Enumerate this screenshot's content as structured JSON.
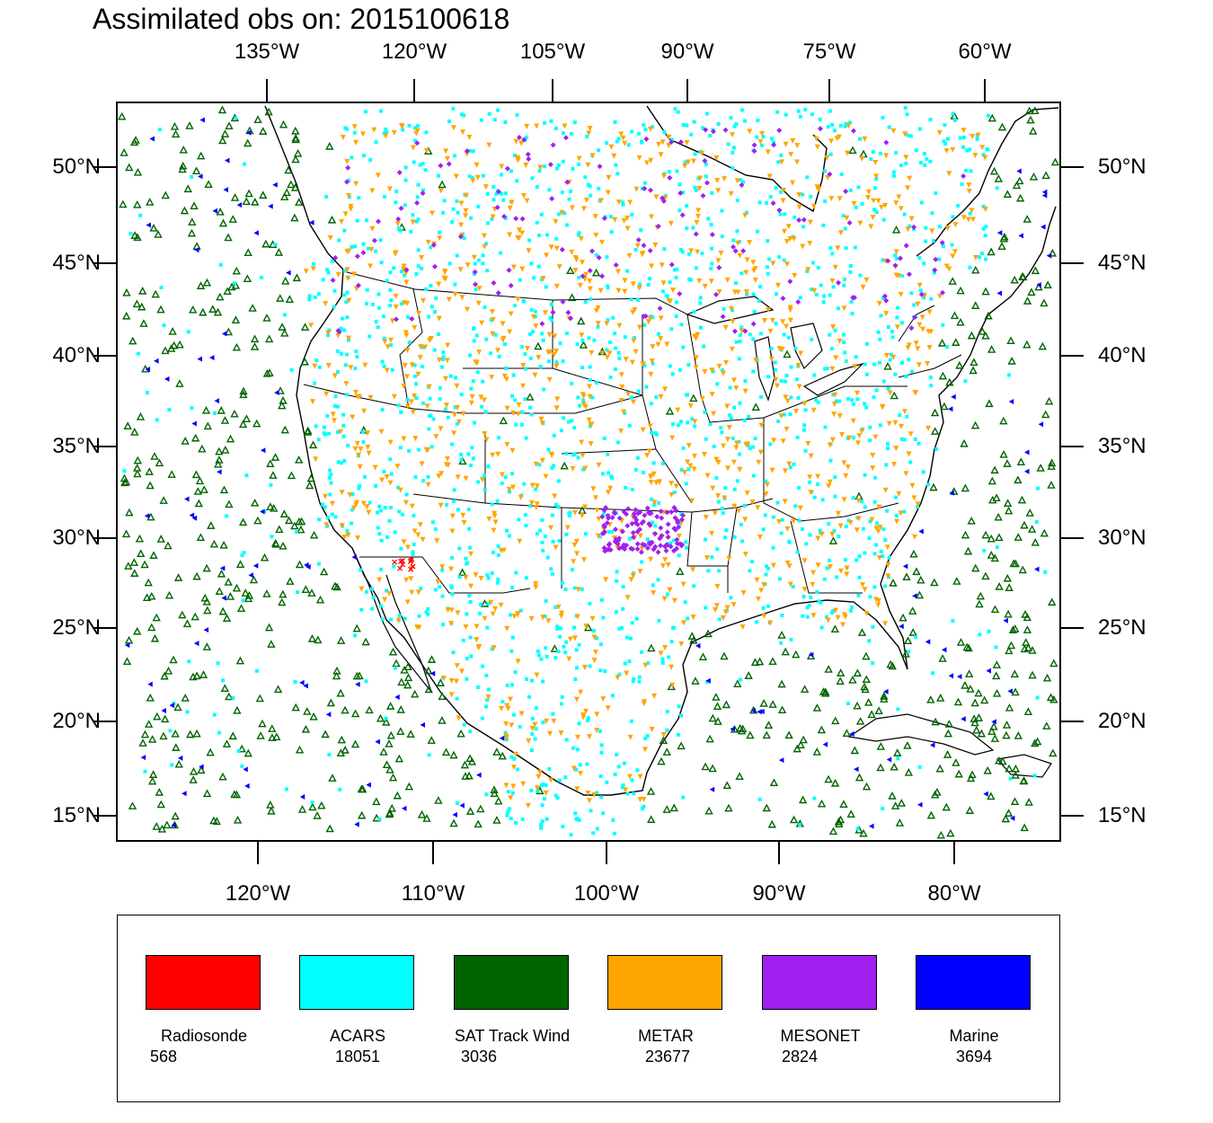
{
  "title": "Assimilated obs on: 2015100618",
  "top_lon_labels": [
    "135°W",
    "120°W",
    "105°W",
    "90°W",
    "75°W",
    "60°W"
  ],
  "bottom_lon_labels": [
    "120°W",
    "110°W",
    "100°W",
    "90°W",
    "80°W"
  ],
  "lat_labels": [
    "50°N",
    "45°N",
    "40°N",
    "35°N",
    "30°N",
    "25°N",
    "20°N",
    "15°N"
  ],
  "colors": {
    "radiosonde": "#ff0000",
    "acars": "#00ffff",
    "sat_track_wind": "#006400",
    "metar": "#ffa500",
    "mesonet": "#a020f0",
    "marine": "#0000ff"
  },
  "legend": [
    {
      "name": "Radiosonde",
      "count": "568",
      "color": "#ff0000"
    },
    {
      "name": "ACARS",
      "count": "18051",
      "color": "#00ffff"
    },
    {
      "name": "SAT Track Wind",
      "count": "3036",
      "color": "#006400"
    },
    {
      "name": "METAR",
      "count": "23677",
      "color": "#ffa500"
    },
    {
      "name": "MESONET",
      "count": "2824",
      "color": "#a020f0"
    },
    {
      "name": "Marine",
      "count": "3694",
      "color": "#0000ff"
    }
  ]
}
